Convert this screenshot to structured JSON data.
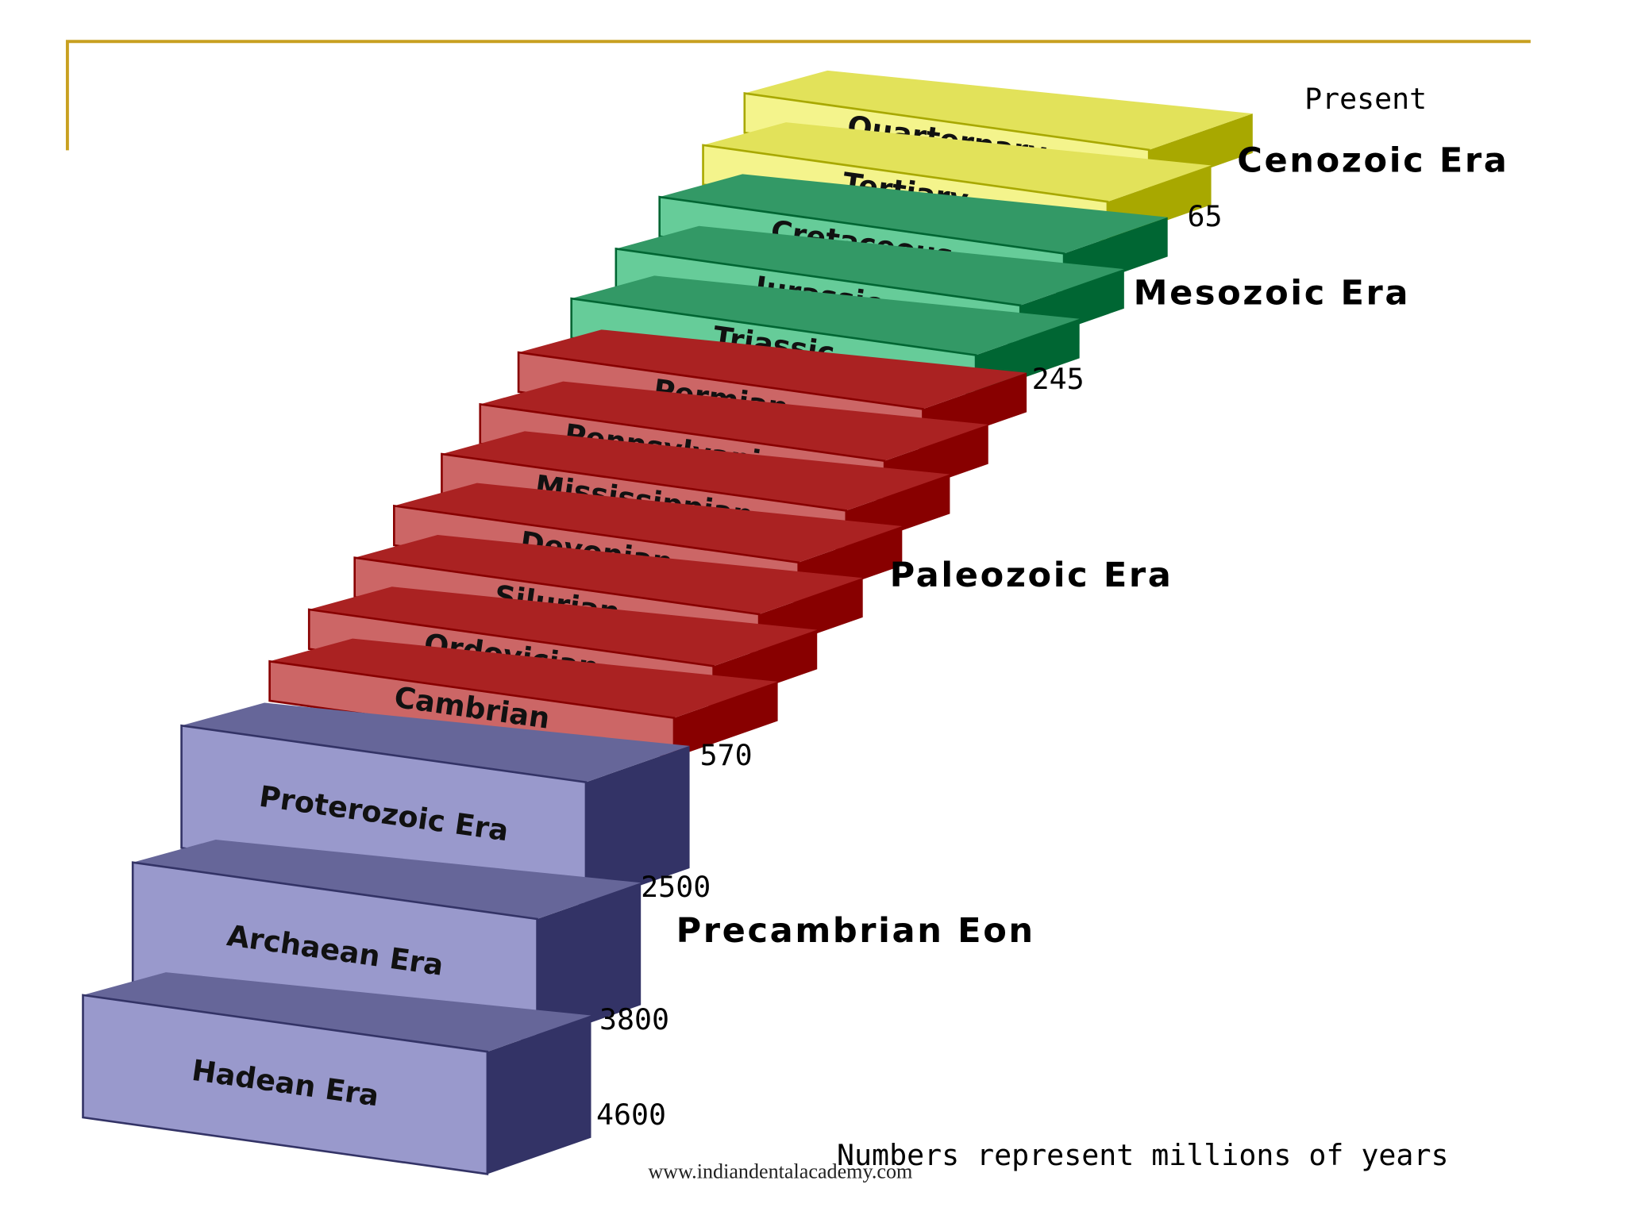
{
  "steps": [
    "Quarternary",
    "Tertiary",
    "Cretaceous",
    "Jurassic",
    "Triassic",
    "Permian",
    "Pennsylvanian",
    "Mississippian",
    "Devonian",
    "Silurian",
    "Ordovician",
    "Cambrian",
    "Proterozoic Era",
    "Archaean Era",
    "Hadean Era"
  ],
  "boundaries": [
    "Present",
    65,
    245,
    570,
    2500,
    3800,
    4600
  ],
  "eras": [
    "Cenozoic Era",
    "Mesozoic Era",
    "Paleozoic Era",
    "Precambrian Eon"
  ],
  "note": "Numbers represent millions of years",
  "footer": "www.indiandentalacademy.com"
}
